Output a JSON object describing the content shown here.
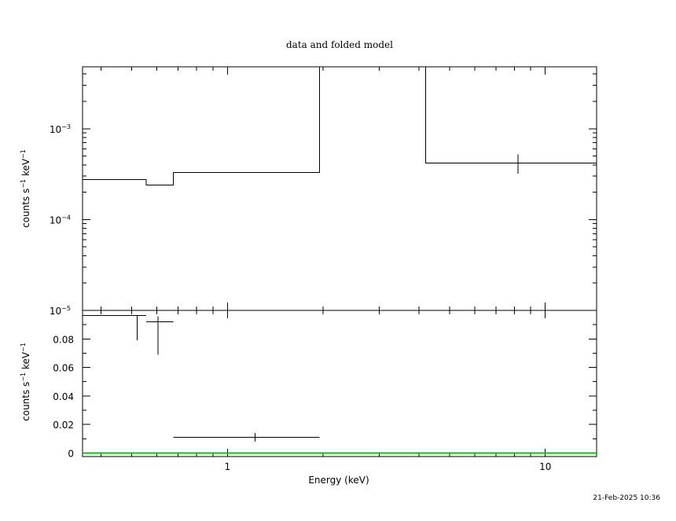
{
  "title": "data and folded model",
  "timestamp": "21-Feb-2025 10:36",
  "xlabel": "Energy (keV)",
  "colors": {
    "axes": "#000000",
    "data": "#000000",
    "model": "#000000",
    "zero_line": "#00cc00"
  },
  "chart_data": [
    {
      "type": "line",
      "panel": "top",
      "ylabel": "counts s-1 keV-1",
      "xscale": "log",
      "yscale": "log",
      "xlim": [
        0.35,
        14.5
      ],
      "ylim": [
        1e-05,
        0.0048
      ],
      "x_tick_labels": [
        {
          "value": 1,
          "label": "1"
        },
        {
          "value": 10,
          "label": "10"
        }
      ],
      "y_tick_labels": [
        {
          "value": 0.001,
          "base": "10",
          "exp": "−3"
        },
        {
          "value": 0.0001,
          "base": "10",
          "exp": "−4"
        },
        {
          "value": 1e-05,
          "base": "10",
          "exp": "−5"
        }
      ],
      "model_steps": [
        {
          "x": [
            0.35,
            0.555
          ],
          "y": 0.000275
        },
        {
          "x": [
            0.555,
            0.675
          ],
          "y": 0.00024
        },
        {
          "x": [
            0.675,
            1.95
          ],
          "y": 0.00033
        },
        {
          "x": [
            1.95,
            4.2
          ],
          "y": 0.0048
        },
        {
          "x": [
            4.2,
            14.5
          ],
          "y": 0.00042
        }
      ],
      "data_points": [
        {
          "x": 8.2,
          "y": 0.00042,
          "yerr": [
            0.00032,
            0.00052
          ],
          "xerr": [
            8.2,
            8.2
          ]
        }
      ]
    },
    {
      "type": "line",
      "panel": "bottom",
      "ylabel": "counts s-1 keV-1",
      "xscale": "log",
      "yscale": "linear",
      "xlim": [
        0.35,
        14.5
      ],
      "ylim": [
        -0.0025,
        0.1
      ],
      "x_tick_labels": [
        {
          "value": 1,
          "label": "1"
        },
        {
          "value": 10,
          "label": "10"
        }
      ],
      "y_tick_labels": [
        {
          "value": 0,
          "label": "0"
        },
        {
          "value": 0.02,
          "label": "0.02"
        },
        {
          "value": 0.04,
          "label": "0.04"
        },
        {
          "value": 0.06,
          "label": "0.06"
        },
        {
          "value": 0.08,
          "label": "0.08"
        }
      ],
      "data_points": [
        {
          "x": 0.52,
          "y": 0.0965,
          "xerr": [
            0.35,
            0.555
          ],
          "yerr": [
            0.079,
            0.0965
          ]
        },
        {
          "x": 0.605,
          "y": 0.092,
          "xerr": [
            0.555,
            0.675
          ],
          "yerr": [
            0.069,
            0.096
          ]
        },
        {
          "x": 1.22,
          "y": 0.011,
          "xerr": [
            0.675,
            1.95
          ],
          "yerr": [
            0.008,
            0.014
          ]
        }
      ],
      "zero_line": 0
    }
  ]
}
